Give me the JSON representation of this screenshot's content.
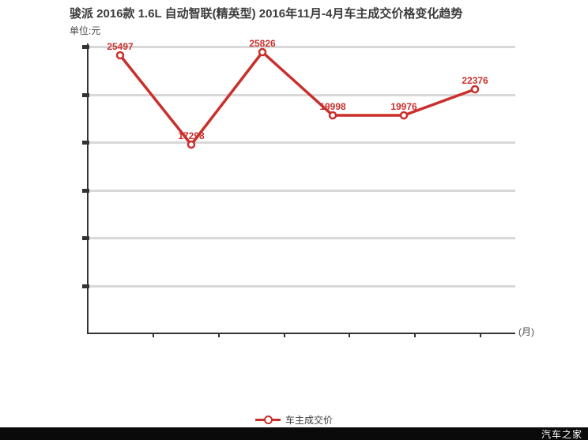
{
  "header": {
    "title": "骏派 2016款 1.6L 自动智联(精英型) 2016年11月-4月车主成交价格变化趋势",
    "unit_label": "单位:元"
  },
  "chart": {
    "x_axis_label": "(月)",
    "legend_label": "车主成交价"
  },
  "footer": {
    "brand": "汽车之家"
  },
  "colors": {
    "accent_red": "#c9302c",
    "gridline_gray": "#d8d8d8",
    "axis_dark": "#333333",
    "title_text": "#3c3c3c",
    "footer_bg": "#0a0a0a",
    "footer_text": "#ffffff"
  },
  "chart_data": {
    "type": "line",
    "title": "骏派 2016款 1.6L 自动智联(精英型) 2016年11月-4月车主成交价格变化趋势",
    "unit": "元",
    "xlabel": "(月)",
    "ylabel": "",
    "x_tick_labels_visible": false,
    "grid": "horizontal",
    "legend_position": "bottom-center",
    "ylim": [
      0,
      26600
    ],
    "y_gridline_interval": 4400,
    "series": [
      {
        "name": "车主成交价",
        "color": "#c9302c",
        "values": [
          25497,
          17298,
          25826,
          19998,
          19976,
          22376
        ],
        "point_labels": [
          "25497",
          "17298",
          "25826",
          "19998",
          "19976",
          "22376"
        ]
      }
    ]
  }
}
